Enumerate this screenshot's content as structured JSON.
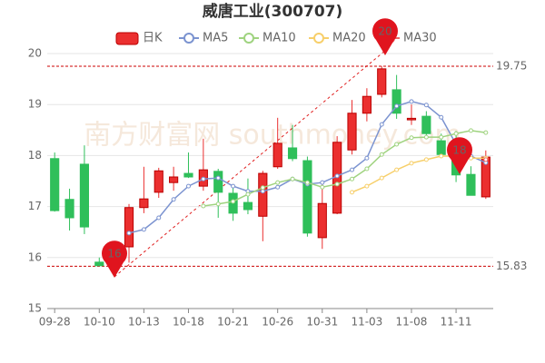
{
  "chart_data": {
    "type": "candlestick",
    "title": "威唐工业(300707)",
    "watermark": "南方财富网 southmoney.com",
    "categories": [
      "09-28",
      null,
      null,
      "10-10",
      null,
      null,
      "10-13",
      null,
      null,
      "10-18",
      null,
      null,
      "10-21",
      null,
      null,
      "10-26",
      null,
      null,
      "10-31",
      null,
      null,
      "11-03",
      null,
      null,
      "11-08",
      null,
      null,
      "11-11",
      null,
      null
    ],
    "ylim": [
      15,
      20
    ],
    "yticks": [
      15,
      16,
      17,
      18,
      19,
      20
    ],
    "grid": true,
    "up_color": "#eb2f2f",
    "down_color": "#2fbf5a",
    "candles": {
      "name": "日K",
      "open": [
        17.94,
        17.14,
        17.83,
        15.91,
        15.86,
        16.21,
        16.98,
        17.28,
        17.47,
        17.65,
        17.4,
        17.69,
        17.26,
        17.08,
        16.81,
        17.78,
        18.15,
        17.9,
        16.39,
        16.87,
        18.11,
        18.83,
        19.2,
        19.29,
        18.7,
        18.77,
        18.29,
        18.02,
        17.63,
        17.19
      ],
      "close": [
        16.92,
        16.78,
        16.6,
        15.84,
        15.95,
        16.98,
        17.15,
        17.7,
        17.58,
        17.58,
        17.72,
        17.28,
        16.87,
        16.94,
        17.65,
        18.24,
        17.94,
        16.48,
        17.06,
        18.26,
        18.83,
        19.16,
        19.7,
        18.83,
        18.73,
        18.43,
        18.02,
        17.62,
        17.22,
        17.97
      ],
      "high": [
        18.06,
        17.35,
        18.2,
        16.0,
        16.0,
        17.05,
        17.78,
        17.76,
        17.78,
        18.06,
        18.33,
        17.74,
        17.4,
        17.55,
        17.7,
        18.74,
        18.6,
        17.98,
        17.49,
        18.38,
        19.09,
        19.32,
        19.75,
        19.58,
        19.0,
        18.87,
        18.43,
        18.48,
        17.79,
        18.1
      ],
      "low": [
        16.9,
        16.53,
        16.46,
        15.83,
        15.83,
        15.9,
        16.87,
        17.17,
        17.31,
        17.56,
        17.31,
        16.78,
        16.72,
        16.85,
        16.32,
        17.74,
        17.89,
        16.41,
        16.17,
        16.85,
        18.02,
        18.67,
        19.14,
        18.72,
        18.6,
        18.38,
        17.98,
        17.48,
        17.22,
        17.15
      ]
    },
    "series": [
      {
        "name": "MA5",
        "color": "#7b93d0",
        "values": [
          null,
          null,
          null,
          null,
          null,
          16.48,
          16.55,
          16.78,
          17.14,
          17.4,
          17.54,
          17.56,
          17.4,
          17.3,
          17.3,
          17.38,
          17.54,
          17.44,
          17.47,
          17.6,
          17.72,
          17.95,
          18.61,
          18.97,
          19.06,
          18.99,
          18.75,
          18.22,
          17.99,
          17.86
        ]
      },
      {
        "name": "MA10",
        "color": "#9fd37f",
        "values": [
          null,
          null,
          null,
          null,
          null,
          null,
          null,
          null,
          null,
          null,
          17.01,
          17.05,
          17.1,
          17.24,
          17.37,
          17.47,
          17.54,
          17.47,
          17.38,
          17.44,
          17.54,
          17.74,
          18.02,
          18.22,
          18.35,
          18.36,
          18.36,
          18.43,
          18.49,
          18.45
        ]
      },
      {
        "name": "MA20",
        "color": "#f7cf6a",
        "values": [
          null,
          null,
          null,
          null,
          null,
          null,
          null,
          null,
          null,
          null,
          null,
          null,
          null,
          null,
          null,
          null,
          null,
          null,
          null,
          null,
          17.28,
          17.4,
          17.56,
          17.72,
          17.85,
          17.92,
          17.99,
          17.99,
          17.95,
          17.95
        ]
      },
      {
        "name": "MA30",
        "color": "#ee6666",
        "values": [
          null,
          null,
          null,
          null,
          null,
          null,
          null,
          null,
          null,
          null,
          null,
          null,
          null,
          null,
          null,
          null,
          null,
          null,
          null,
          null,
          null,
          null,
          null,
          null,
          null,
          null,
          null,
          null,
          null,
          17.92
        ]
      }
    ],
    "marklines": [
      19.75,
      15.83
    ],
    "annotations": [
      "16",
      "20",
      "18"
    ]
  }
}
